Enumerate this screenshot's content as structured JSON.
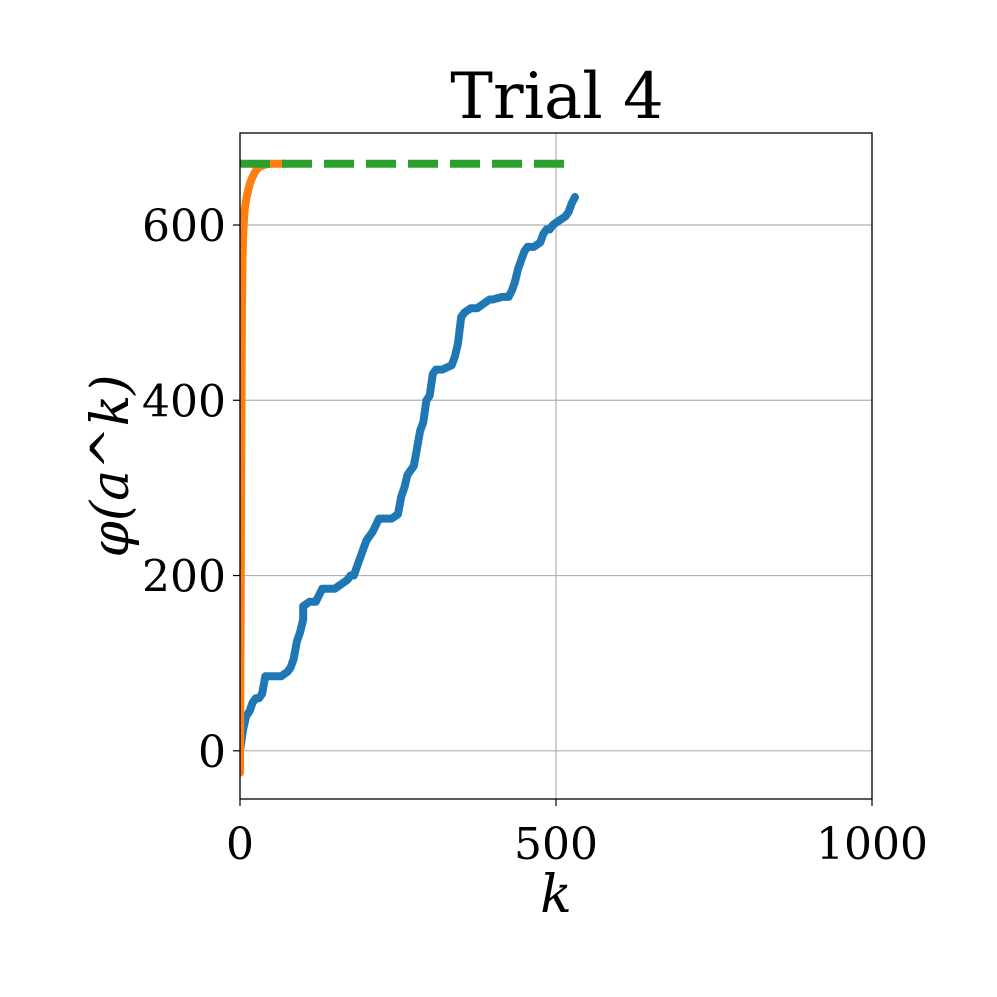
{
  "chart_data": {
    "type": "line",
    "title": "Trial 4",
    "xlabel": "k",
    "ylabel": "φ(a^k)",
    "xlim": [
      0,
      1000
    ],
    "ylim": [
      -55,
      705
    ],
    "xticks": [
      0,
      500,
      1000
    ],
    "yticks": [
      0,
      200,
      400,
      600
    ],
    "grid": true,
    "series": [
      {
        "color": "#1f77b4",
        "style": "solid",
        "x": [
          0,
          5,
          10,
          15,
          20,
          25,
          30,
          35,
          40,
          55,
          65,
          75,
          80,
          85,
          90,
          95,
          100,
          100,
          110,
          120,
          130,
          140,
          150,
          160,
          170,
          175,
          180,
          185,
          195,
          200,
          210,
          220,
          225,
          230,
          240,
          250,
          255,
          260,
          265,
          270,
          275,
          280,
          285,
          290,
          295,
          300,
          305,
          310,
          315,
          320,
          335,
          340,
          345,
          350,
          355,
          365,
          375,
          385,
          395,
          400,
          415,
          425,
          430,
          435,
          440,
          445,
          450,
          455,
          465,
          475,
          480,
          485,
          490,
          495,
          505,
          515,
          520,
          525,
          530
        ],
        "y": [
          0,
          25,
          40,
          45,
          55,
          60,
          60,
          65,
          85,
          85,
          85,
          90,
          95,
          105,
          125,
          135,
          150,
          165,
          170,
          170,
          185,
          185,
          185,
          190,
          195,
          200,
          200,
          210,
          230,
          240,
          250,
          265,
          265,
          265,
          265,
          270,
          290,
          300,
          315,
          320,
          325,
          345,
          365,
          375,
          400,
          405,
          430,
          435,
          435,
          435,
          440,
          450,
          465,
          495,
          500,
          505,
          505,
          510,
          515,
          515,
          518,
          518,
          525,
          535,
          550,
          560,
          570,
          575,
          575,
          580,
          590,
          595,
          595,
          600,
          605,
          610,
          615,
          625,
          632
        ]
      },
      {
        "color": "#ff7f0e",
        "style": "solid",
        "x": [
          0,
          1,
          2,
          3,
          4,
          5,
          7,
          10,
          13,
          16,
          20,
          25,
          30,
          40,
          50,
          60,
          70
        ],
        "y": [
          -25,
          150,
          350,
          500,
          560,
          590,
          615,
          630,
          640,
          648,
          655,
          662,
          666,
          669,
          670,
          670,
          670
        ]
      },
      {
        "color": "#2ca02c",
        "style": "dashed",
        "x": [
          0,
          530
        ],
        "y": [
          670,
          670
        ]
      }
    ]
  }
}
